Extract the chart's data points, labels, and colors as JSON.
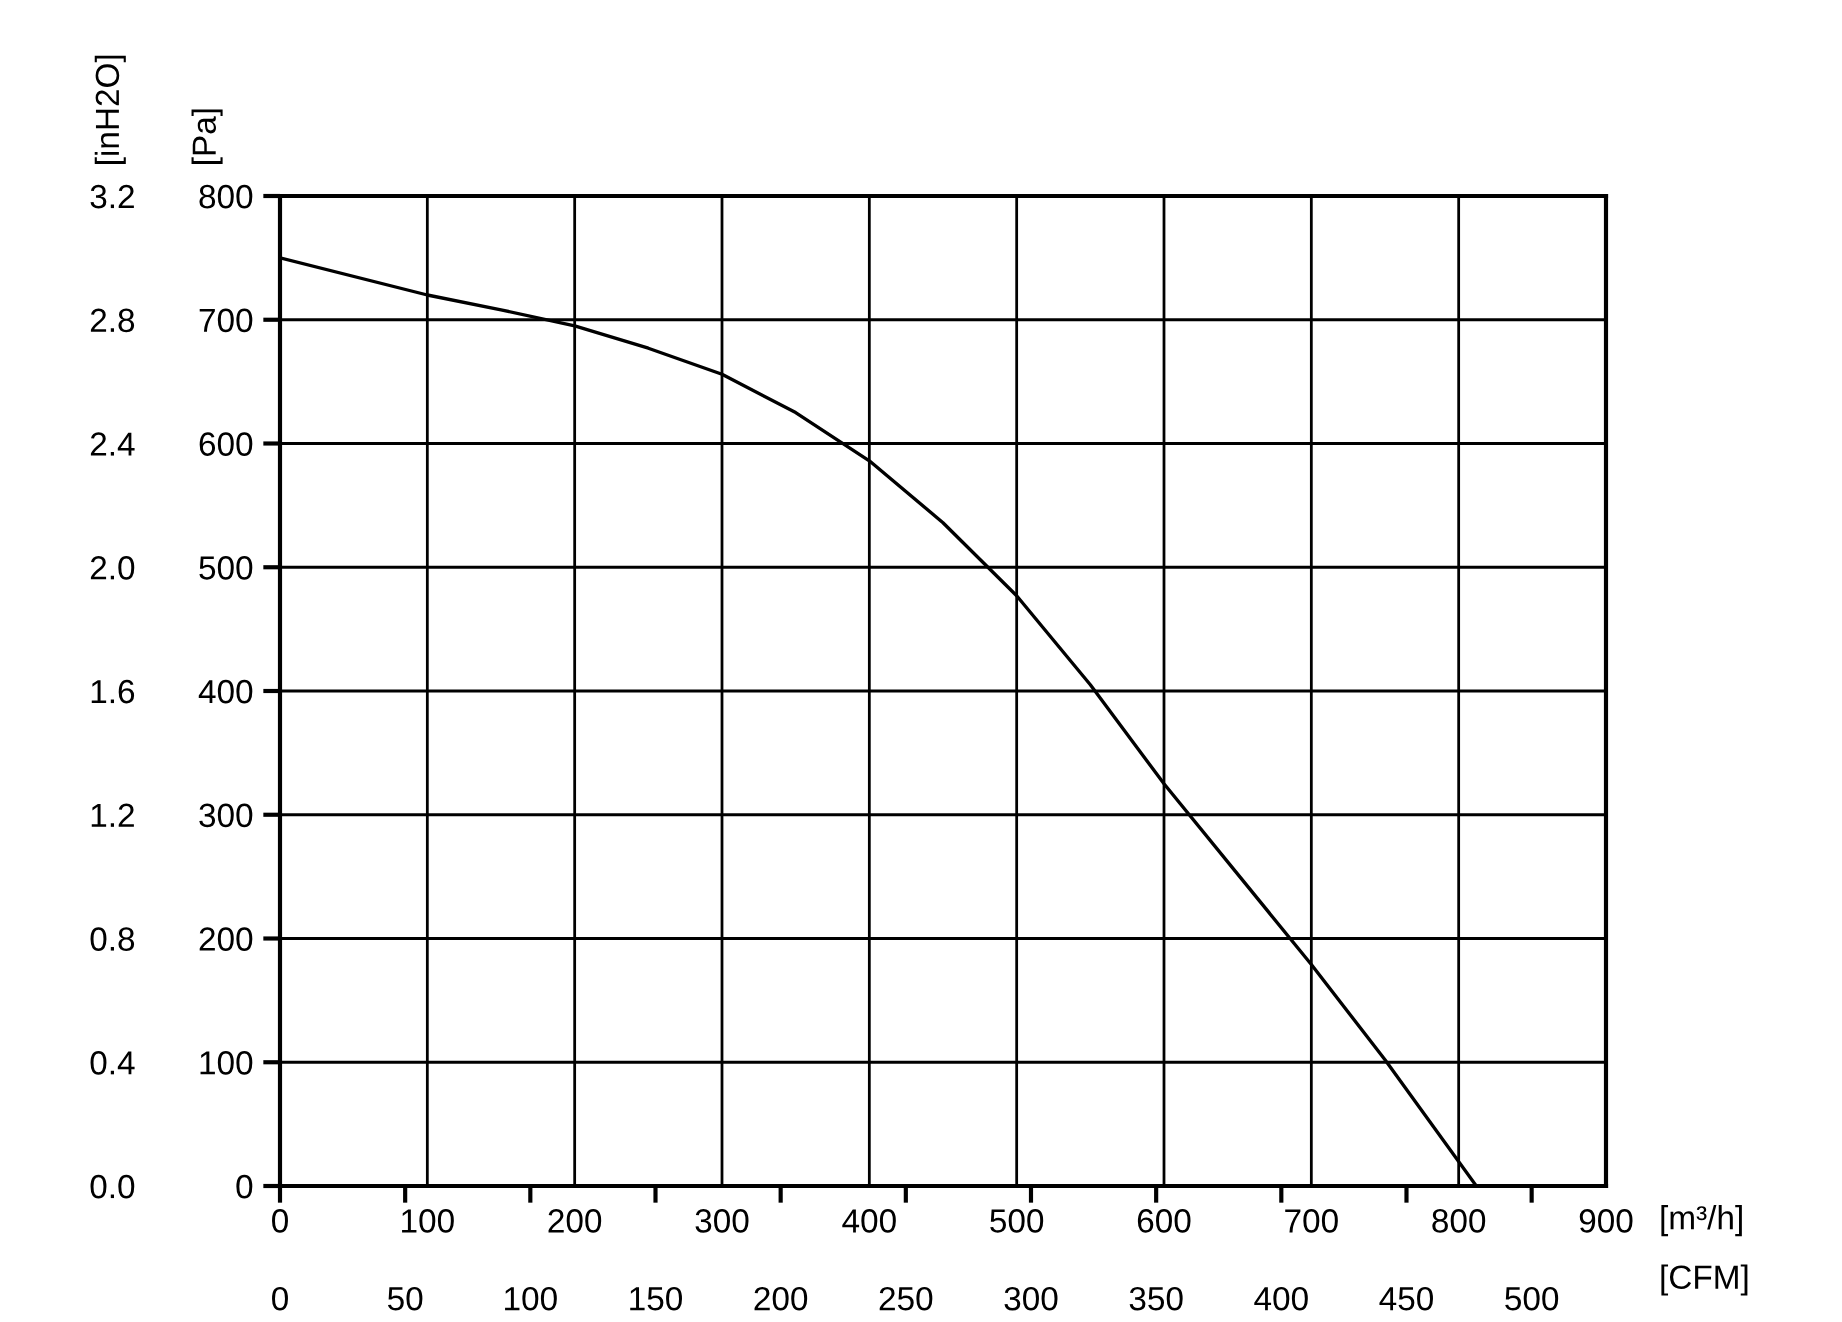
{
  "chart_data": {
    "type": "line",
    "xlabel": "[m³/h]",
    "ylabel": "[Pa]",
    "y2label": "[inH2O]",
    "x2label": "[CFM]",
    "x": [
      0,
      100,
      150,
      200,
      250,
      300,
      350,
      400,
      450,
      500,
      550,
      600,
      650,
      700,
      750,
      812
    ],
    "series": [
      {
        "color": "#000000",
        "values": [
          750,
          720,
          708,
          695,
          677,
          656,
          625,
          586,
          536,
          477,
          405,
          325,
          252,
          179,
          102,
          0
        ]
      }
    ],
    "xlim": [
      0,
      900
    ],
    "xticks": [
      0,
      100,
      200,
      300,
      400,
      500,
      600,
      700,
      800,
      900
    ],
    "ylim": [
      0,
      800
    ],
    "yticks": [
      0,
      100,
      200,
      300,
      400,
      500,
      600,
      700,
      800
    ],
    "y2lim": [
      0,
      3.2
    ],
    "y2ticks": [
      {
        "value": 0,
        "label": "0.0"
      },
      {
        "value": 0.4,
        "label": "0.4"
      },
      {
        "value": 0.8,
        "label": "0.8"
      },
      {
        "value": 1.2,
        "label": "1.2"
      },
      {
        "value": 1.6,
        "label": "1.6"
      },
      {
        "value": 2.0,
        "label": "2.0"
      },
      {
        "value": 2.4,
        "label": "2.4"
      },
      {
        "value": 2.8,
        "label": "2.8"
      },
      {
        "value": 3.2,
        "label": "3.2"
      }
    ],
    "x2lim": [
      0,
      529.7
    ],
    "x2ticks": [
      0,
      50,
      100,
      150,
      200,
      250,
      300,
      350,
      400,
      450,
      500
    ],
    "grid": true,
    "marker": "none",
    "line_style": "solid"
  }
}
